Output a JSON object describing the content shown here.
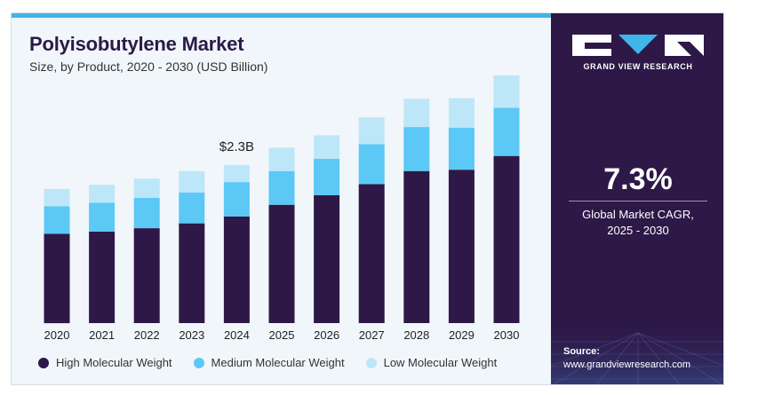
{
  "header": {
    "title": "Polyisobutylene Market",
    "subtitle": "Size, by Product, 2020 - 2030 (USD Billion)"
  },
  "sidebar": {
    "brand": "GRAND VIEW RESEARCH",
    "cagr_value": "7.3%",
    "cagr_line1": "Global Market CAGR,",
    "cagr_line2": "2025 - 2030",
    "source_label": "Source:",
    "source_url": "www.grandviewresearch.com"
  },
  "colors": {
    "high": "#2d1847",
    "medium": "#5bc8f5",
    "low": "#bde7f8",
    "accent": "#3fb5ea",
    "sidebar_bg": "#2d1847"
  },
  "chart_data": {
    "type": "bar",
    "stacked": true,
    "title": "Polyisobutylene Market",
    "subtitle": "Size, by Product, 2020 - 2030 (USD Billion)",
    "categories": [
      "2020",
      "2021",
      "2022",
      "2023",
      "2024",
      "2025",
      "2026",
      "2027",
      "2028",
      "2029",
      "2030"
    ],
    "series": [
      {
        "name": "High Molecular Weight",
        "values": [
          1.3,
          1.33,
          1.38,
          1.45,
          1.55,
          1.72,
          1.86,
          2.02,
          2.21,
          2.23,
          2.43
        ]
      },
      {
        "name": "Medium Molecular Weight",
        "values": [
          0.4,
          0.42,
          0.44,
          0.45,
          0.5,
          0.49,
          0.53,
          0.58,
          0.64,
          0.61,
          0.7
        ]
      },
      {
        "name": "Low Molecular Weight",
        "values": [
          0.25,
          0.26,
          0.28,
          0.31,
          0.25,
          0.34,
          0.34,
          0.39,
          0.41,
          0.43,
          0.47
        ]
      }
    ],
    "annotations": [
      {
        "category": "2024",
        "text": "$2.3B"
      }
    ],
    "ylim": [
      0,
      3.6
    ],
    "grid": false,
    "legend": "bottom"
  }
}
